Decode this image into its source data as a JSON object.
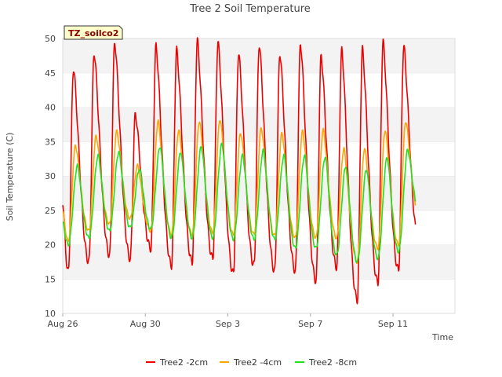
{
  "chart_data": {
    "type": "line",
    "title": "Tree 2 Soil Temperature",
    "badge": "TZ_soilco2",
    "xlabel": "Time",
    "ylabel": "Soil Temperature (C)",
    "ylim": [
      10,
      50
    ],
    "yticks": [
      10,
      15,
      20,
      25,
      30,
      35,
      40,
      45,
      50
    ],
    "xlim": [
      "2023-08-26",
      "2023-09-14"
    ],
    "xticks": [
      {
        "date": "2023-08-26",
        "label": "Aug 26"
      },
      {
        "date": "2023-08-30",
        "label": "Aug 30"
      },
      {
        "date": "2023-09-03",
        "label": "Sep 3"
      },
      {
        "date": "2023-09-07",
        "label": "Sep 7"
      },
      {
        "date": "2023-09-11",
        "label": "Sep 11"
      }
    ],
    "grid": "horizontal bands",
    "legend_position": "bottom",
    "series": [
      {
        "name": "Tree2 -2cm",
        "color": "#ee0000",
        "x": [
          "2023-08-26",
          "2023-08-27",
          "2023-08-28",
          "2023-08-29",
          "2023-08-30",
          "2023-08-31",
          "2023-09-01",
          "2023-09-02",
          "2023-09-03",
          "2023-09-04",
          "2023-09-05",
          "2023-09-06",
          "2023-09-07",
          "2023-09-08",
          "2023-09-09",
          "2023-09-10",
          "2023-09-11",
          "2023-09-12"
        ],
        "min": [
          16.0,
          17.5,
          18.5,
          18.0,
          19.5,
          17.0,
          17.5,
          18.0,
          15.8,
          17.0,
          16.2,
          16.2,
          14.8,
          16.8,
          12.0,
          14.5,
          16.3,
          19.8
        ],
        "max": [
          45.7,
          48.0,
          49.5,
          39.0,
          48.9,
          48.3,
          49.7,
          49.5,
          47.9,
          49.2,
          47.9,
          49.3,
          47.5,
          48.3,
          48.4,
          49.5,
          48.9,
          null
        ]
      },
      {
        "name": "Tree2 -4cm",
        "color": "#ffa500",
        "x": [
          "2023-08-26",
          "2023-08-27",
          "2023-08-28",
          "2023-08-29",
          "2023-08-30",
          "2023-08-31",
          "2023-09-01",
          "2023-09-02",
          "2023-09-03",
          "2023-09-04",
          "2023-09-05",
          "2023-09-06",
          "2023-09-07",
          "2023-09-08",
          "2023-09-09",
          "2023-09-10",
          "2023-09-11",
          "2023-09-12"
        ],
        "min": [
          20.5,
          22.0,
          23.0,
          23.8,
          22.0,
          21.5,
          21.5,
          21.8,
          21.5,
          21.5,
          21.3,
          21.0,
          21.0,
          21.0,
          17.5,
          19.5,
          20.0,
          24.0
        ],
        "max": [
          34.5,
          35.8,
          36.5,
          31.5,
          38.0,
          36.7,
          38.0,
          38.3,
          36.3,
          37.0,
          36.2,
          36.5,
          36.7,
          34.0,
          34.0,
          36.7,
          38.0,
          null
        ]
      },
      {
        "name": "Tree2 -8cm",
        "color": "#22e022",
        "x": [
          "2023-08-26",
          "2023-08-27",
          "2023-08-28",
          "2023-08-29",
          "2023-08-30",
          "2023-08-31",
          "2023-09-01",
          "2023-09-02",
          "2023-09-03",
          "2023-09-04",
          "2023-09-05",
          "2023-09-06",
          "2023-09-07",
          "2023-09-08",
          "2023-09-09",
          "2023-09-10",
          "2023-09-11",
          "2023-09-12"
        ],
        "min": [
          20.0,
          21.0,
          22.0,
          22.5,
          22.3,
          21.0,
          21.0,
          21.0,
          20.8,
          20.8,
          20.8,
          19.5,
          19.5,
          18.5,
          17.5,
          18.0,
          19.0,
          25.0
        ],
        "max": [
          31.5,
          33.0,
          33.5,
          31.0,
          34.3,
          33.5,
          34.3,
          34.7,
          33.0,
          33.7,
          33.0,
          33.0,
          32.8,
          31.5,
          31.0,
          32.7,
          33.8,
          null
        ]
      }
    ]
  }
}
